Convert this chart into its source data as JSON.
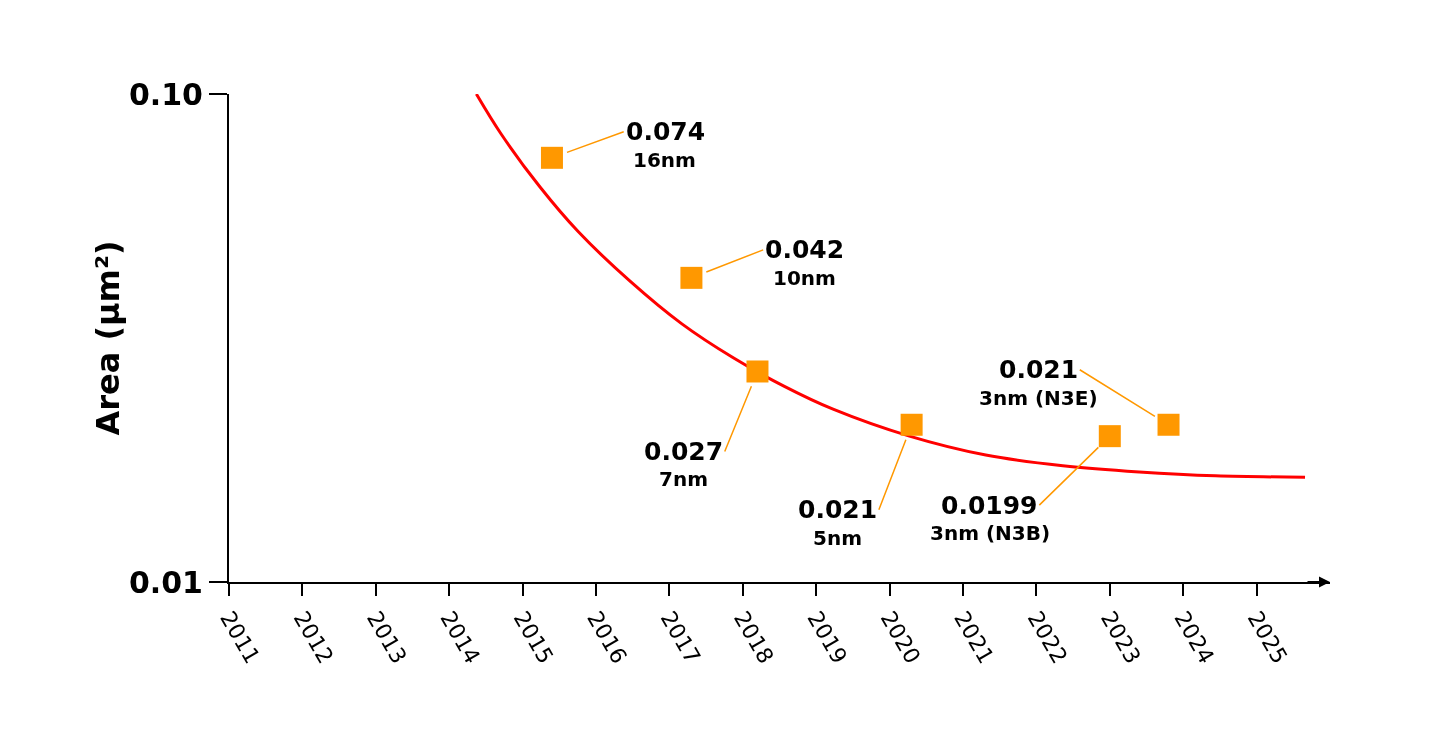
{
  "chart_data": {
    "type": "scatter",
    "ylabel": "Area (μm²)",
    "x": [
      2015.4,
      2017.3,
      2018.2,
      2020.3,
      2023.0,
      2023.8
    ],
    "series": [
      {
        "type": "line",
        "color": "#ff0000",
        "marker": "none",
        "x": [
          2014.37,
          2014.71,
          2015.24,
          2015.76,
          2016.46,
          2017.17,
          2017.87,
          2018.56,
          2019.23,
          2020.27,
          2021.31,
          2022.36,
          2023.4,
          2024.44,
          2025.66
        ],
        "values": [
          0.1,
          0.0827,
          0.0644,
          0.0522,
          0.0414,
          0.0338,
          0.0288,
          0.0252,
          0.0226,
          0.0199,
          0.0182,
          0.0173,
          0.0168,
          0.0165,
          0.0164
        ]
      },
      {
        "color": "#ff9800",
        "values": [
          0.074,
          0.042,
          0.027,
          0.021,
          0.0199,
          0.021
        ],
        "value_labels": [
          "0.074",
          "0.042",
          "0.027",
          "0.021",
          "0.0199",
          "0.021"
        ]
      }
    ],
    "annotations": [
      {
        "text": "16nm",
        "x": 2015.4,
        "y": 0.074
      },
      {
        "text": "10nm",
        "x": 2017.3,
        "y": 0.042
      },
      {
        "text": "7nm",
        "x": 2018.2,
        "y": 0.027
      },
      {
        "text": "5nm",
        "x": 2020.3,
        "y": 0.021
      },
      {
        "text": "3nm (N3B)",
        "x": 2023.0,
        "y": 0.0199
      },
      {
        "text": "3nm (N3E)",
        "x": 2023.8,
        "y": 0.021
      }
    ],
    "xlim": [
      2011,
      2026
    ],
    "xticks": [
      2011,
      2012,
      2013,
      2014,
      2015,
      2016,
      2017,
      2018,
      2019,
      2020,
      2021,
      2022,
      2023,
      2024,
      2025
    ],
    "ylim": [
      0.01,
      0.1
    ],
    "yticks": [
      0.01,
      {
        "value": 0.1,
        "label": "0.10"
      }
    ],
    "log": "y",
    "marker": "square",
    "grid": false
  }
}
